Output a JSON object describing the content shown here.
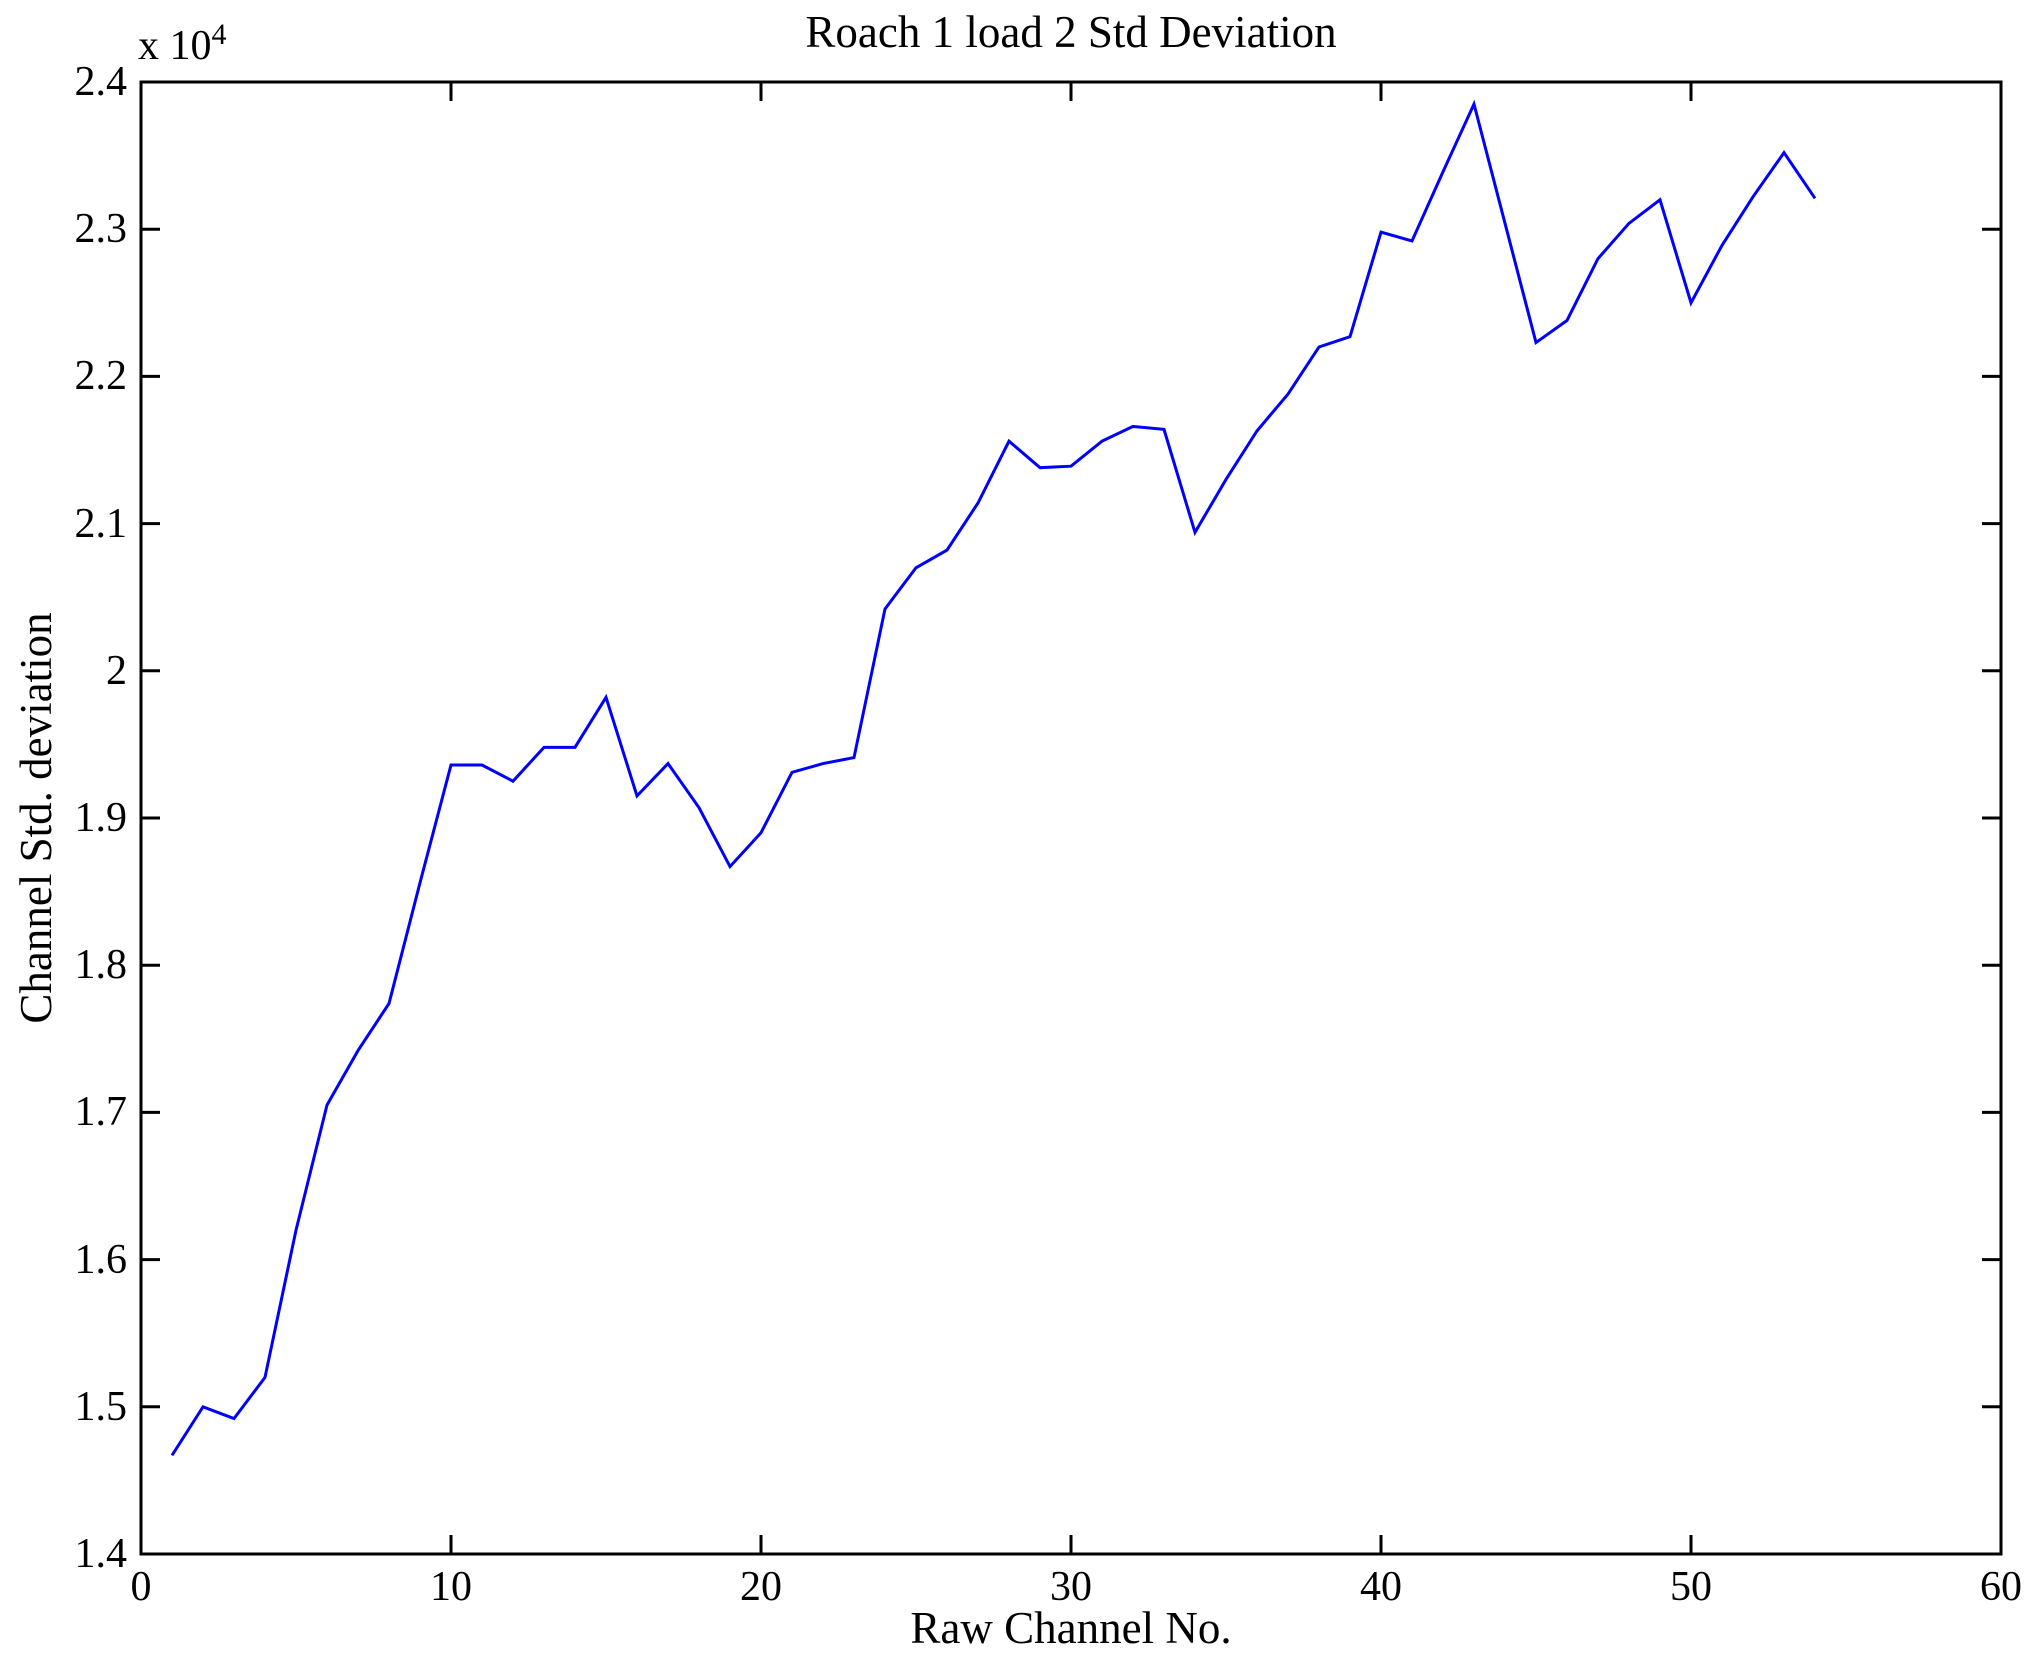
{
  "figure": {
    "title": "Roach 1 load 2 Std Deviation",
    "xlabel": "Raw Channel No.",
    "ylabel": "Channel Std. deviation",
    "y_exponent_label": "x 10",
    "y_exponent_power": "4",
    "background_color": "#FFFFFF",
    "axis_color": "#000000",
    "line_color": "#0000FF"
  },
  "chart_data": {
    "type": "line",
    "title": "Roach 1 load 2 Std Deviation",
    "xlabel": "Raw Channel No.",
    "ylabel": "Channel Std. deviation",
    "xlim": [
      0,
      60
    ],
    "ylim": [
      14000,
      24000
    ],
    "x_ticks": [
      0,
      10,
      20,
      30,
      40,
      50,
      60
    ],
    "y_ticks": [
      1.4,
      1.5,
      1.6,
      1.7,
      1.8,
      1.9,
      2,
      2.1,
      2.2,
      2.3,
      2.4
    ],
    "y_scale_factor": 10000,
    "grid": false,
    "legend": null,
    "box": true,
    "tick_direction": "in",
    "series": [
      {
        "name": "Channel Std. deviation",
        "color": "#0000FF",
        "x": [
          1,
          2,
          3,
          4,
          5,
          6,
          7,
          8,
          9,
          10,
          11,
          12,
          13,
          14,
          15,
          16,
          17,
          18,
          19,
          20,
          21,
          22,
          23,
          24,
          25,
          26,
          27,
          28,
          29,
          30,
          31,
          32,
          33,
          34,
          35,
          36,
          37,
          38,
          39,
          40,
          41,
          42,
          43,
          44,
          45,
          46,
          47,
          48,
          49,
          50,
          51,
          52,
          53,
          54
        ],
        "y": [
          14670,
          15000,
          14920,
          15200,
          16200,
          17050,
          17420,
          17740,
          18560,
          19360,
          19360,
          19250,
          19480,
          19480,
          19820,
          19150,
          19370,
          19070,
          18670,
          18900,
          19310,
          19370,
          19410,
          20420,
          20700,
          20820,
          21140,
          21560,
          21380,
          21390,
          21560,
          21660,
          21640,
          20940,
          21300,
          21630,
          21880,
          22200,
          22270,
          22980,
          22920,
          23390,
          23850,
          23040,
          22230,
          22380,
          22800,
          23040,
          23200,
          22500,
          22890,
          23220,
          23520,
          23210
        ]
      }
    ]
  }
}
